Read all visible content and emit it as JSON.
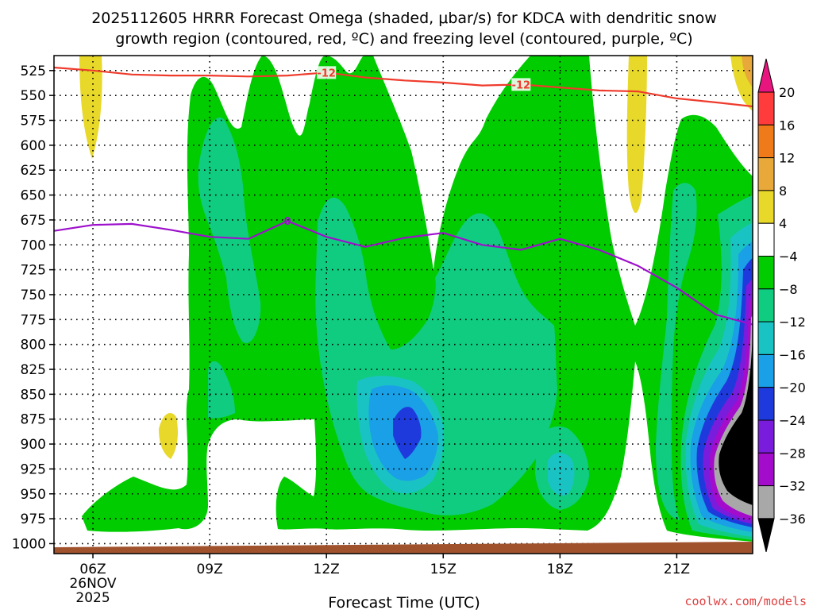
{
  "chart_data": {
    "type": "heatmap",
    "title_line1": "2025112605 HRRR Forecast Omega (shaded, μbar/s) for KDCA with dendritic snow",
    "title_line2": "growth region (contoured, red, ºC) and freezing level (contoured, purple, ºC)",
    "xlabel": "Forecast Time (UTC)",
    "credit": "coolwx.com/models",
    "x_ticks": [
      {
        "hour": 6,
        "label": "06Z",
        "sub1": "26NOV",
        "sub2": "2025"
      },
      {
        "hour": 9,
        "label": "09Z"
      },
      {
        "hour": 12,
        "label": "12Z"
      },
      {
        "hour": 15,
        "label": "15Z"
      },
      {
        "hour": 18,
        "label": "18Z"
      },
      {
        "hour": 21,
        "label": "21Z"
      }
    ],
    "xlim": [
      5,
      22.95
    ],
    "y_ticks": [
      "525",
      "550",
      "575",
      "600",
      "625",
      "650",
      "675",
      "700",
      "725",
      "750",
      "775",
      "800",
      "825",
      "850",
      "875",
      "900",
      "925",
      "950",
      "975",
      "1000"
    ],
    "ylim": [
      510,
      1010
    ],
    "colorbar": {
      "labels": [
        "20",
        "16",
        "12",
        "8",
        "4",
        "−4",
        "−8",
        "−12",
        "−16",
        "−20",
        "−24",
        "−28",
        "−32",
        "−36"
      ],
      "colors": [
        "#ff3b3b",
        "#ee7a1a",
        "#e8a83a",
        "#e8d82a",
        "#ffffff",
        "#00cc00",
        "#10cc80",
        "#1ac3c3",
        "#1aa0e6",
        "#1e3adc",
        "#7a1cdc",
        "#a40ccc",
        "#a8a8a8"
      ],
      "top_arrow": "#e8157e",
      "bottom_arrow": "#000000"
    },
    "series": [
      {
        "name": "-12",
        "color": "#ef3b2c",
        "x": [
          5,
          6,
          7,
          8,
          9,
          10,
          11,
          12,
          13,
          14,
          15,
          16,
          17,
          18,
          19,
          20,
          21,
          22,
          22.95
        ],
        "y": [
          522,
          525,
          529,
          530,
          530,
          531,
          530,
          527,
          532,
          535,
          537,
          540,
          539,
          542,
          545,
          546,
          553,
          557,
          561
        ]
      },
      {
        "name": "0",
        "color": "#9d10cc",
        "x": [
          5,
          6,
          7,
          8,
          9,
          10,
          11,
          12,
          13,
          14,
          15,
          16,
          17,
          18,
          19,
          20,
          21,
          22,
          22.95
        ],
        "y": [
          686,
          680,
          679,
          685,
          692,
          694,
          676,
          692,
          702,
          693,
          688,
          700,
          705,
          694,
          705,
          721,
          743,
          770,
          780
        ]
      }
    ]
  }
}
